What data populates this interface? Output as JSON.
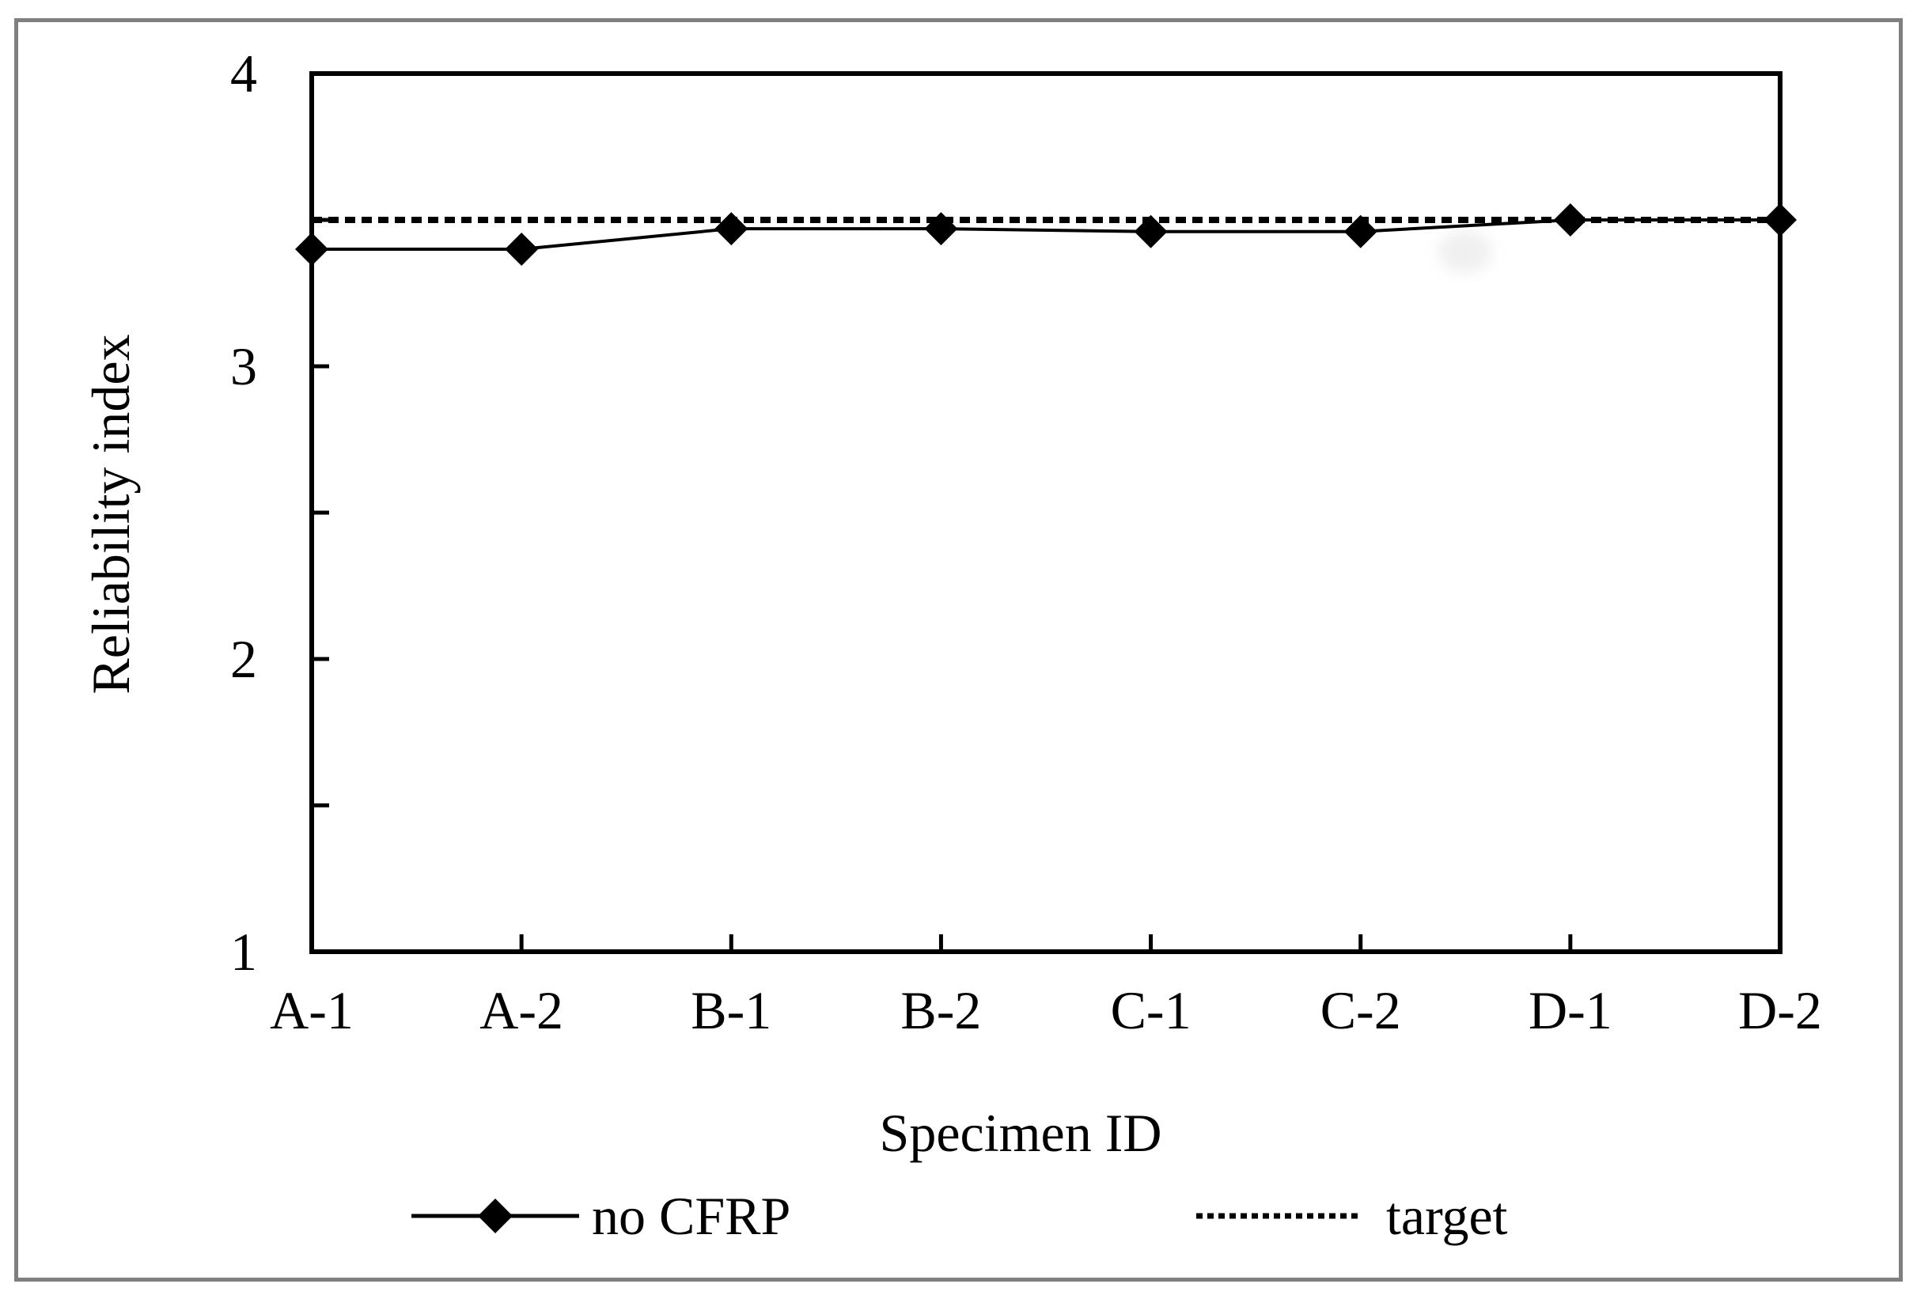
{
  "figure": {
    "background_color": "#ffffff",
    "border_color": "#7f7f7f",
    "ink_color": "#000000"
  },
  "chart_data": {
    "type": "line",
    "title": "",
    "xlabel": "Specimen ID",
    "ylabel": "Reliability index",
    "categories": [
      "A-1",
      "A-2",
      "B-1",
      "B-2",
      "C-1",
      "C-2",
      "D-1",
      "D-2"
    ],
    "series": [
      {
        "name": "no CFRP",
        "marker": "diamond",
        "line_style": "solid",
        "color": "#000000",
        "values": [
          3.4,
          3.4,
          3.47,
          3.47,
          3.46,
          3.46,
          3.5,
          3.5
        ]
      },
      {
        "name": "target",
        "marker": "none",
        "line_style": "dotted",
        "color": "#000000",
        "constant_value": 3.5
      }
    ],
    "ylim": [
      1,
      4
    ],
    "ytick_labels": [
      "1",
      "2",
      "3",
      "4"
    ],
    "ytick_values": [
      1,
      2,
      3,
      4
    ],
    "ytick_minor_step": 0.5,
    "grid": false,
    "legend_position": "bottom"
  }
}
